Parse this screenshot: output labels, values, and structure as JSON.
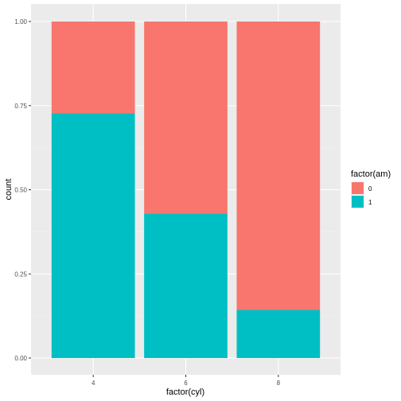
{
  "chart_data": {
    "type": "bar",
    "stacked": "fill",
    "categories": [
      "4",
      "6",
      "8"
    ],
    "series": [
      {
        "name": "0",
        "values": [
          0.273,
          0.571,
          0.857
        ]
      },
      {
        "name": "1",
        "values": [
          0.727,
          0.429,
          0.143
        ]
      }
    ],
    "stack_order": [
      "1",
      "0"
    ],
    "xlabel": "factor(cyl)",
    "ylabel": "count",
    "ylim": [
      0,
      1
    ],
    "yticks": [
      "0.00",
      "0.25",
      "0.50",
      "0.75",
      "1.00"
    ],
    "legend_title": "factor(am)",
    "legend_position": "right",
    "grid": true,
    "panel_color": "#ebebeb",
    "colors": {
      "0": "#F8766D",
      "1": "#00BFC4"
    }
  }
}
